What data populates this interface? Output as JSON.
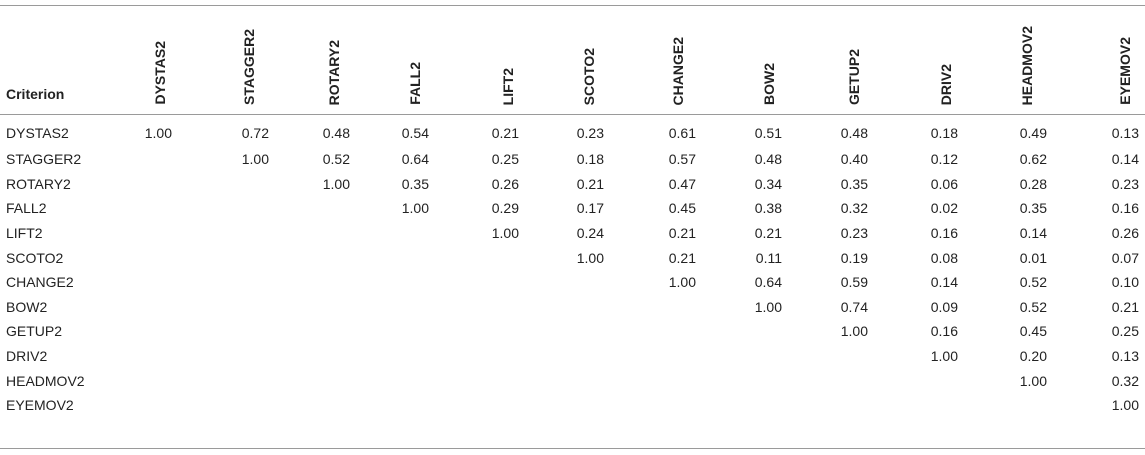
{
  "table": {
    "criterion_label": "Criterion",
    "columns": [
      "DYSTAS2",
      "STAGGER2",
      "ROTARY2",
      "FALL2",
      "LIFT2",
      "SCOTO2",
      "CHANGE2",
      "BOW2",
      "GETUP2",
      "DRIV2",
      "HEADMOV2",
      "EYEMOV2"
    ],
    "rows": [
      {
        "label": "DYSTAS2",
        "values": [
          "1.00",
          "0.72",
          "0.48",
          "0.54",
          "0.21",
          "0.23",
          "0.61",
          "0.51",
          "0.48",
          "0.18",
          "0.49",
          "0.13"
        ]
      },
      {
        "label": "STAGGER2",
        "values": [
          "",
          "1.00",
          "0.52",
          "0.64",
          "0.25",
          "0.18",
          "0.57",
          "0.48",
          "0.40",
          "0.12",
          "0.62",
          "0.14"
        ]
      },
      {
        "label": "ROTARY2",
        "values": [
          "",
          "",
          "1.00",
          "0.35",
          "0.26",
          "0.21",
          "0.47",
          "0.34",
          "0.35",
          "0.06",
          "0.28",
          "0.23"
        ]
      },
      {
        "label": "FALL2",
        "values": [
          "",
          "",
          "",
          "1.00",
          "0.29",
          "0.17",
          "0.45",
          "0.38",
          "0.32",
          "0.02",
          "0.35",
          "0.16"
        ]
      },
      {
        "label": "LIFT2",
        "values": [
          "",
          "",
          "",
          "",
          "1.00",
          "0.24",
          "0.21",
          "0.21",
          "0.23",
          "0.16",
          "0.14",
          "0.26"
        ]
      },
      {
        "label": "SCOTO2",
        "values": [
          "",
          "",
          "",
          "",
          "",
          "1.00",
          "0.21",
          "0.11",
          "0.19",
          "0.08",
          "0.01",
          "0.07"
        ]
      },
      {
        "label": "CHANGE2",
        "values": [
          "",
          "",
          "",
          "",
          "",
          "",
          "1.00",
          "0.64",
          "0.59",
          "0.14",
          "0.52",
          "0.10"
        ]
      },
      {
        "label": "BOW2",
        "values": [
          "",
          "",
          "",
          "",
          "",
          "",
          "",
          "1.00",
          "0.74",
          "0.09",
          "0.52",
          "0.21"
        ]
      },
      {
        "label": "GETUP2",
        "values": [
          "",
          "",
          "",
          "",
          "",
          "",
          "",
          "",
          "1.00",
          "0.16",
          "0.45",
          "0.25"
        ]
      },
      {
        "label": "DRIV2",
        "values": [
          "",
          "",
          "",
          "",
          "",
          "",
          "",
          "",
          "",
          "1.00",
          "0.20",
          "0.13"
        ]
      },
      {
        "label": "HEADMOV2",
        "values": [
          "",
          "",
          "",
          "",
          "",
          "",
          "",
          "",
          "",
          "",
          "1.00",
          "0.32"
        ]
      },
      {
        "label": "EYEMOV2",
        "values": [
          "",
          "",
          "",
          "",
          "",
          "",
          "",
          "",
          "",
          "",
          "",
          "1.00"
        ]
      }
    ]
  }
}
